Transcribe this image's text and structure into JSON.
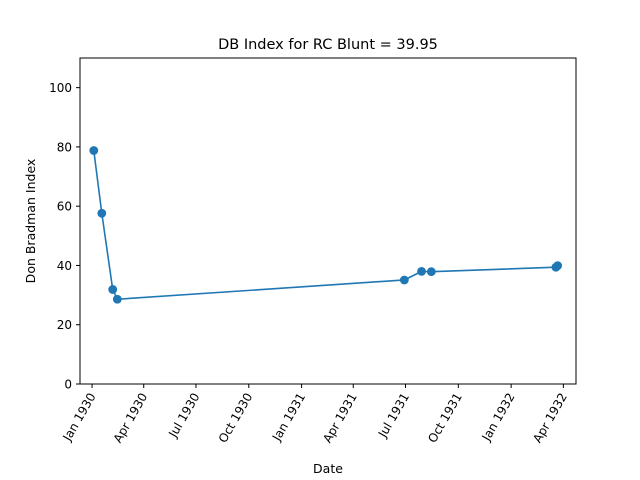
{
  "chart_data": {
    "type": "line",
    "title": "DB Index for RC Blunt = 39.95",
    "xlabel": "Date",
    "ylabel": "Don Bradman Index",
    "x_scale": "date",
    "ylim": [
      0,
      110
    ],
    "xlim": [
      "1929-12-11",
      "1932-04-23"
    ],
    "grid": false,
    "marker": "circle",
    "series_color": "#1f77b4",
    "x_ticks": [
      "1930-01-01",
      "1930-04-01",
      "1930-07-01",
      "1930-10-01",
      "1931-01-01",
      "1931-04-01",
      "1931-07-01",
      "1931-10-01",
      "1932-01-01",
      "1932-04-01"
    ],
    "x_tick_labels": [
      "Jan 1930",
      "Apr 1930",
      "Jul 1930",
      "Oct 1930",
      "Jan 1931",
      "Apr 1931",
      "Jul 1931",
      "Oct 1931",
      "Jan 1932",
      "Apr 1932"
    ],
    "y_ticks": [
      0,
      20,
      40,
      60,
      80,
      100
    ],
    "y_tick_labels": [
      "0",
      "20",
      "40",
      "60",
      "80",
      "100"
    ],
    "series": [
      {
        "x": [
          "1930-01-04",
          "1930-01-18",
          "1930-02-06",
          "1930-02-14",
          "1931-06-29",
          "1931-07-29",
          "1931-08-15",
          "1932-03-19",
          "1932-03-22"
        ],
        "y": [
          78.8,
          57.6,
          31.9,
          28.6,
          35.1,
          38.0,
          37.9,
          39.4,
          39.95
        ]
      }
    ]
  }
}
